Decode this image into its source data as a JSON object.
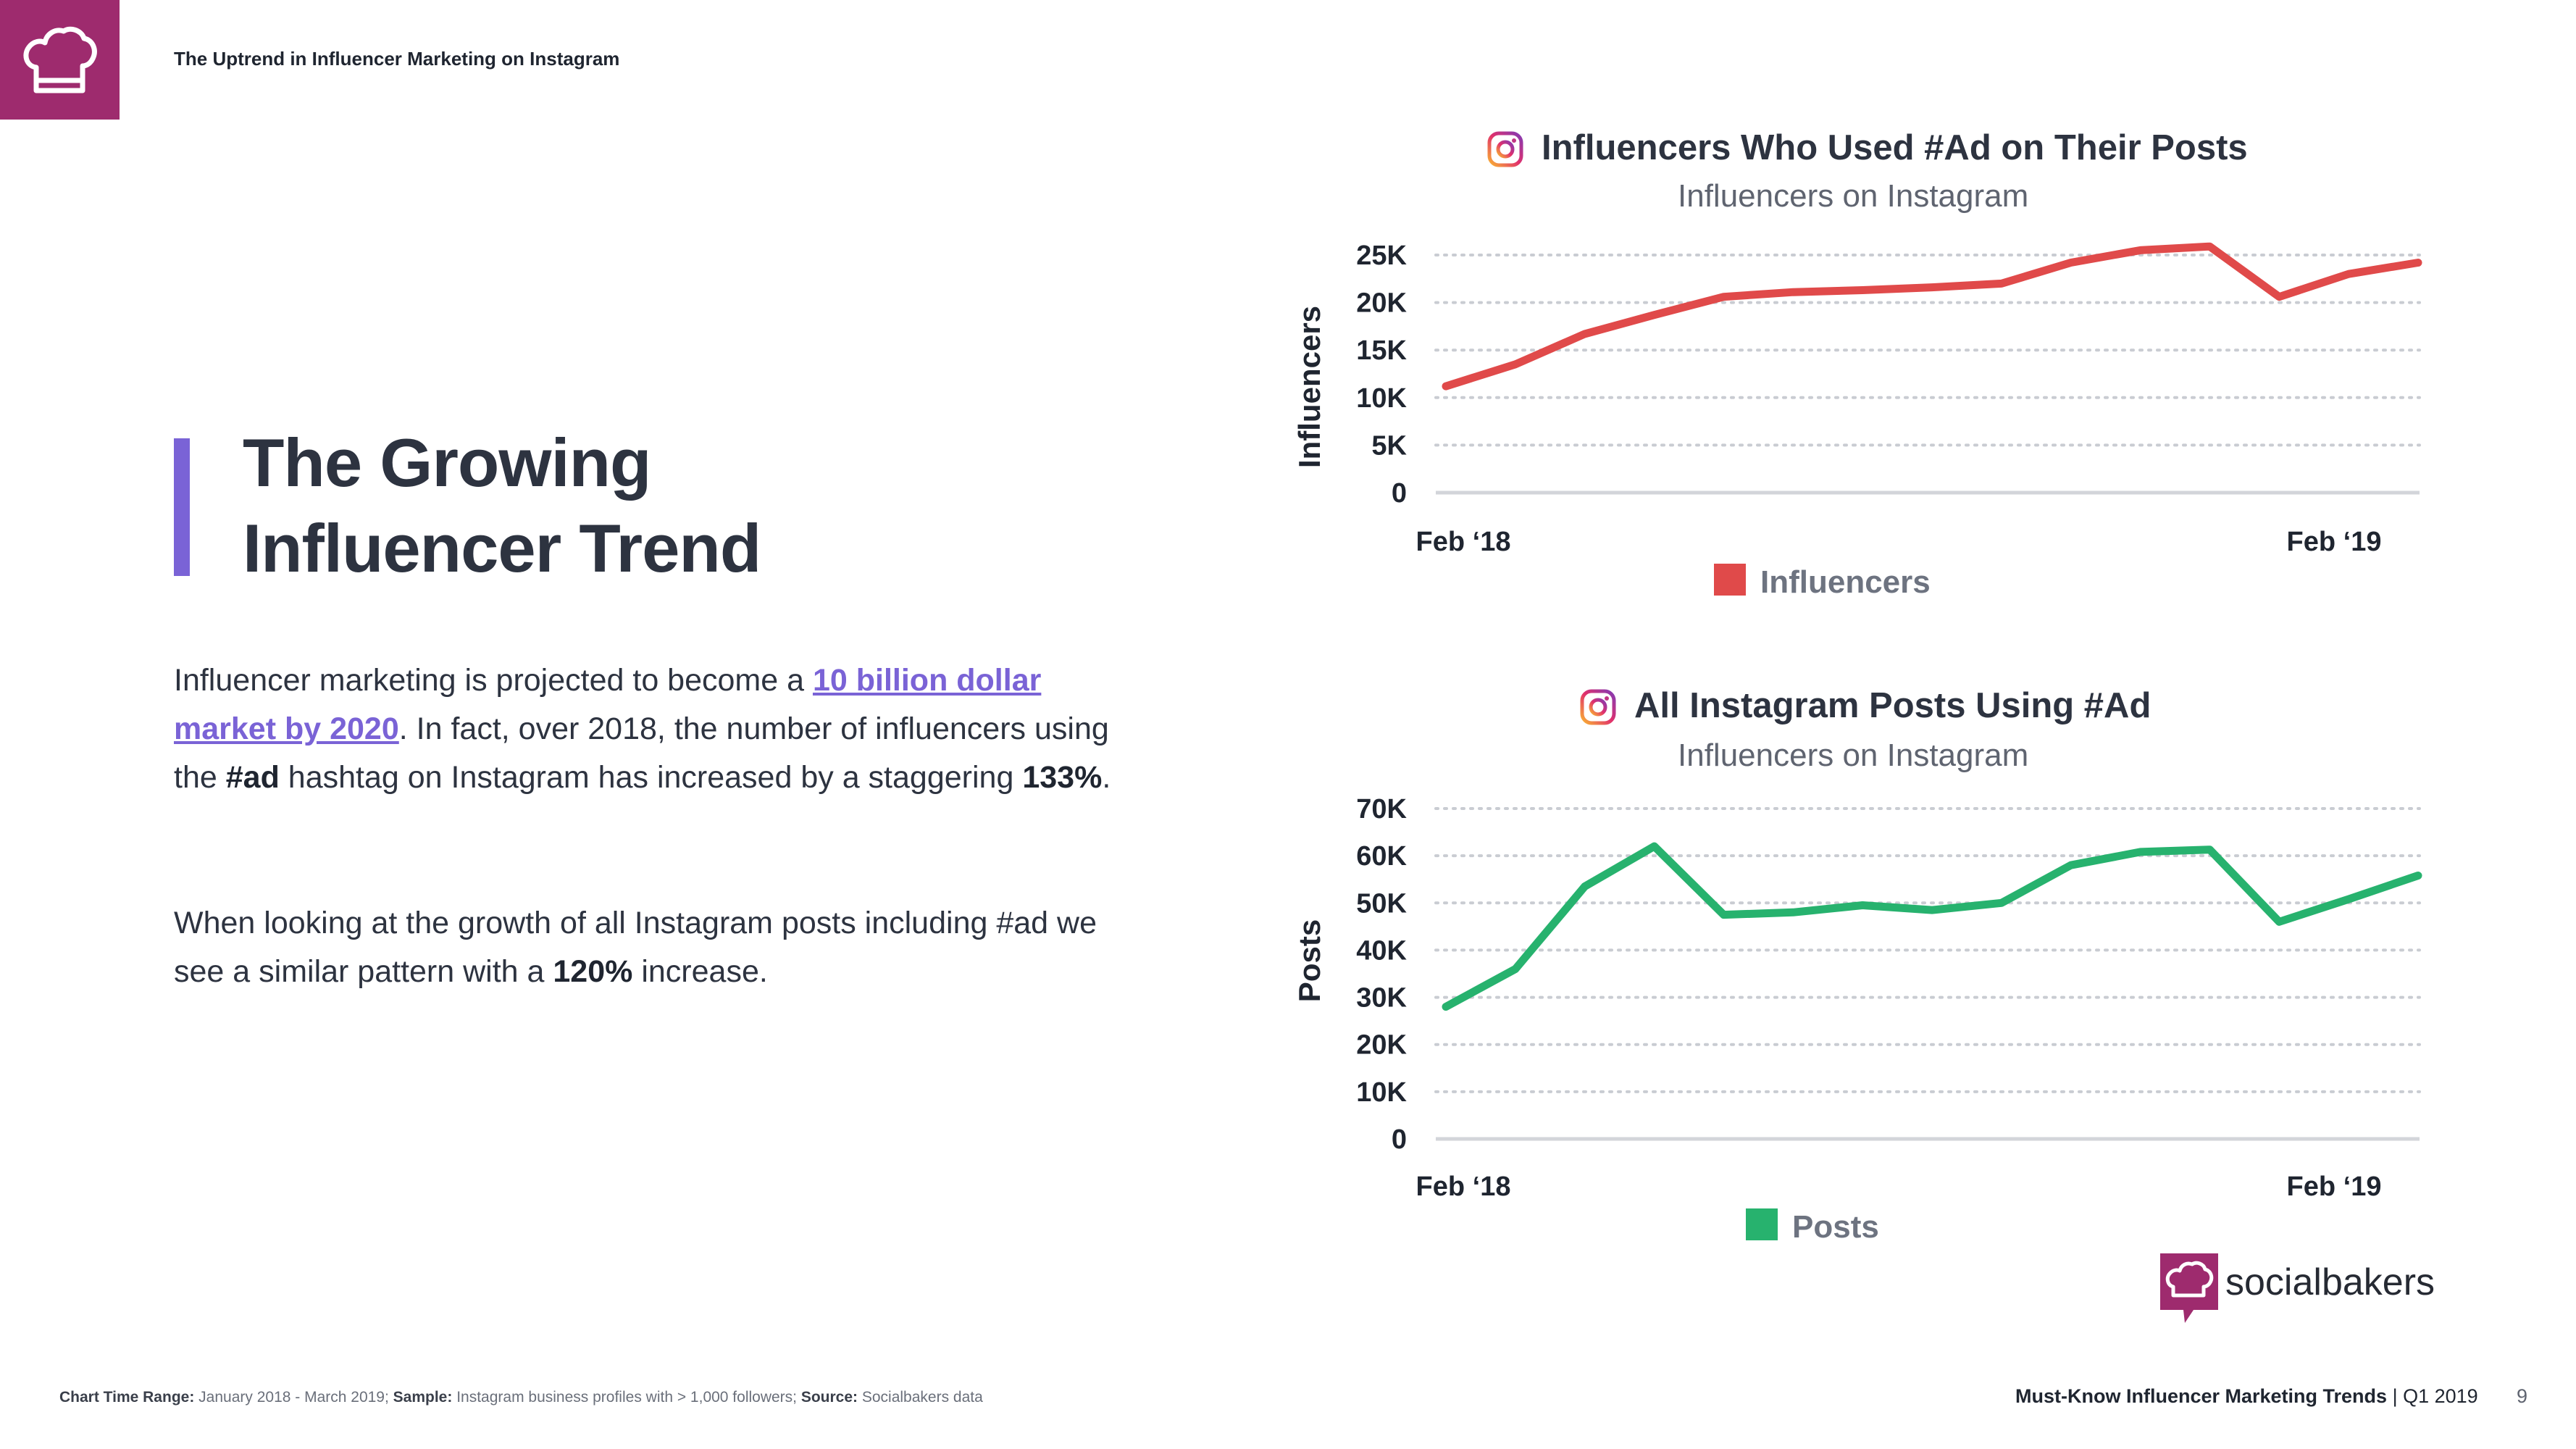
{
  "header": {
    "title": "The Uptrend in Influencer Marketing on Instagram"
  },
  "main": {
    "title_line1": "The Growing",
    "title_line2": "Influencer Trend",
    "p1_a": "Influencer marketing is projected to become a ",
    "p1_link": "10 billion dollar market by 2020",
    "p1_b": ". In fact, over 2018, the number of influencers using the ",
    "p1_bold1": "#ad",
    "p1_c": " hashtag on Instagram has increased by a staggering ",
    "p1_bold2": "133%",
    "p1_d": ".",
    "p2_a": "When looking at the growth of all Instagram posts including #ad we see a similar pattern with a ",
    "p2_bold": "120%",
    "p2_b": " increase."
  },
  "chart_data": [
    {
      "type": "line",
      "title": "Influencers Who Used #Ad on Their Posts",
      "subtitle": "Influencers on Instagram",
      "xlabel": "",
      "ylabel": "Influencers",
      "x_tick_labels": [
        "Feb ‘18",
        "Feb ‘19"
      ],
      "y_ticks": [
        "0",
        "5K",
        "10K",
        "15K",
        "20K",
        "25K"
      ],
      "y_tick_values": [
        0,
        5000,
        10000,
        15000,
        20000,
        25000
      ],
      "ylim": [
        0,
        25000
      ],
      "legend": "Influencers",
      "color": "#e04a4a",
      "series": [
        {
          "name": "Influencers",
          "values": [
            11200,
            13500,
            16700,
            18700,
            20600,
            21100,
            21300,
            21600,
            22000,
            24200,
            25500,
            25900,
            20600,
            23000,
            24200
          ]
        }
      ]
    },
    {
      "type": "line",
      "title": "All Instagram Posts Using #Ad",
      "subtitle": "Influencers on Instagram",
      "xlabel": "",
      "ylabel": "Posts",
      "x_tick_labels": [
        "Feb ‘18",
        "Feb ‘19"
      ],
      "y_ticks": [
        "0",
        "10K",
        "20K",
        "30K",
        "40K",
        "50K",
        "60K",
        "70K"
      ],
      "y_tick_values": [
        0,
        10000,
        20000,
        30000,
        40000,
        50000,
        60000,
        70000
      ],
      "ylim": [
        0,
        70000
      ],
      "legend": "Posts",
      "color": "#27b26e",
      "series": [
        {
          "name": "Posts",
          "values": [
            28000,
            36000,
            53500,
            62000,
            47500,
            48000,
            49500,
            48500,
            50000,
            58000,
            60800,
            61300,
            46000,
            50800,
            55800
          ]
        }
      ]
    }
  ],
  "brand": {
    "name": "socialbakers",
    "color": "#9e2b6e"
  },
  "footer": {
    "range_label": "Chart Time Range:",
    "range_value": " January 2018 - March 2019; ",
    "sample_label": "Sample:",
    "sample_value": " Instagram business profiles with > 1,000 followers; ",
    "source_label": "Source:",
    "source_value": " Socialbakers data",
    "report": "Must-Know Influencer Marketing Trends",
    "period": " | Q1 2019",
    "page": "9"
  }
}
